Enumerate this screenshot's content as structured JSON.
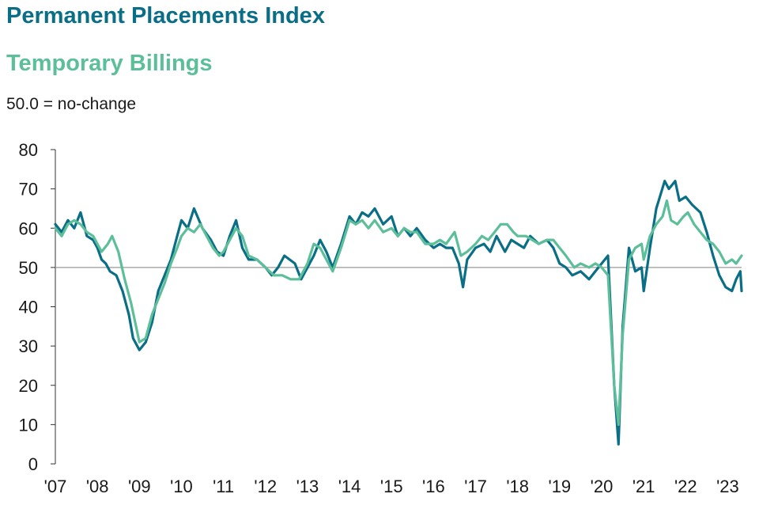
{
  "chart_data": {
    "type": "line",
    "title": "Permanent Placements Index",
    "subtitle": "Temporary Billings",
    "note": "50.0 = no-change",
    "xlabel": "",
    "ylabel": "",
    "ylim": [
      0,
      80
    ],
    "yticks": [
      0,
      10,
      20,
      30,
      40,
      50,
      60,
      70,
      80
    ],
    "reference_line": 50,
    "xticks": [
      "'07",
      "'08",
      "'09",
      "'10",
      "'11",
      "'12",
      "'13",
      "'14",
      "'15",
      "'16",
      "'17",
      "'18",
      "'19",
      "'20",
      "'21",
      "'22",
      "'23"
    ],
    "x_start": 2007.0,
    "x_end": 2023.33,
    "series": [
      {
        "name": "Permanent Placements Index",
        "color": "#0a6e86",
        "points": [
          [
            2007.0,
            61
          ],
          [
            2007.15,
            59
          ],
          [
            2007.3,
            62
          ],
          [
            2007.45,
            60
          ],
          [
            2007.6,
            64
          ],
          [
            2007.75,
            58
          ],
          [
            2007.9,
            57
          ],
          [
            2008.0,
            55
          ],
          [
            2008.1,
            52
          ],
          [
            2008.2,
            51
          ],
          [
            2008.3,
            49
          ],
          [
            2008.45,
            48
          ],
          [
            2008.6,
            44
          ],
          [
            2008.75,
            38
          ],
          [
            2008.85,
            32
          ],
          [
            2009.0,
            29
          ],
          [
            2009.15,
            31
          ],
          [
            2009.3,
            36
          ],
          [
            2009.45,
            44
          ],
          [
            2009.6,
            48
          ],
          [
            2009.75,
            52
          ],
          [
            2009.9,
            58
          ],
          [
            2010.0,
            62
          ],
          [
            2010.15,
            60
          ],
          [
            2010.3,
            65
          ],
          [
            2010.5,
            60
          ],
          [
            2010.7,
            57
          ],
          [
            2010.85,
            54
          ],
          [
            2011.0,
            53
          ],
          [
            2011.15,
            58
          ],
          [
            2011.3,
            62
          ],
          [
            2011.45,
            55
          ],
          [
            2011.6,
            52
          ],
          [
            2011.8,
            52
          ],
          [
            2012.0,
            50
          ],
          [
            2012.15,
            48
          ],
          [
            2012.3,
            50
          ],
          [
            2012.45,
            53
          ],
          [
            2012.7,
            51
          ],
          [
            2012.85,
            47
          ],
          [
            2013.0,
            50
          ],
          [
            2013.15,
            53
          ],
          [
            2013.3,
            57
          ],
          [
            2013.45,
            54
          ],
          [
            2013.6,
            50
          ],
          [
            2013.8,
            56
          ],
          [
            2014.0,
            63
          ],
          [
            2014.15,
            61
          ],
          [
            2014.3,
            64
          ],
          [
            2014.45,
            63
          ],
          [
            2014.6,
            65
          ],
          [
            2014.8,
            61
          ],
          [
            2015.0,
            63
          ],
          [
            2015.15,
            58
          ],
          [
            2015.3,
            60
          ],
          [
            2015.45,
            58
          ],
          [
            2015.6,
            60
          ],
          [
            2015.8,
            57
          ],
          [
            2016.0,
            55
          ],
          [
            2016.15,
            56
          ],
          [
            2016.3,
            55
          ],
          [
            2016.45,
            55
          ],
          [
            2016.6,
            51
          ],
          [
            2016.7,
            45
          ],
          [
            2016.8,
            52
          ],
          [
            2017.0,
            55
          ],
          [
            2017.2,
            56
          ],
          [
            2017.35,
            54
          ],
          [
            2017.5,
            58
          ],
          [
            2017.7,
            54
          ],
          [
            2017.85,
            57
          ],
          [
            2018.0,
            56
          ],
          [
            2018.15,
            55
          ],
          [
            2018.3,
            58
          ],
          [
            2018.5,
            56
          ],
          [
            2018.7,
            57
          ],
          [
            2018.85,
            55
          ],
          [
            2019.0,
            51
          ],
          [
            2019.15,
            50
          ],
          [
            2019.3,
            48
          ],
          [
            2019.5,
            49
          ],
          [
            2019.7,
            47
          ],
          [
            2019.85,
            49
          ],
          [
            2020.0,
            51
          ],
          [
            2020.15,
            53
          ],
          [
            2020.3,
            20
          ],
          [
            2020.4,
            5
          ],
          [
            2020.5,
            35
          ],
          [
            2020.65,
            55
          ],
          [
            2020.8,
            49
          ],
          [
            2020.95,
            50
          ],
          [
            2021.0,
            44
          ],
          [
            2021.15,
            55
          ],
          [
            2021.3,
            65
          ],
          [
            2021.5,
            72
          ],
          [
            2021.6,
            70
          ],
          [
            2021.75,
            72
          ],
          [
            2021.85,
            67
          ],
          [
            2022.0,
            68
          ],
          [
            2022.15,
            66
          ],
          [
            2022.35,
            64
          ],
          [
            2022.5,
            59
          ],
          [
            2022.65,
            53
          ],
          [
            2022.8,
            48
          ],
          [
            2022.95,
            45
          ],
          [
            2023.1,
            44
          ],
          [
            2023.2,
            47
          ],
          [
            2023.3,
            49
          ],
          [
            2023.33,
            44
          ]
        ]
      },
      {
        "name": "Temporary Billings",
        "color": "#5cbf9a",
        "points": [
          [
            2007.0,
            60
          ],
          [
            2007.15,
            58
          ],
          [
            2007.3,
            61
          ],
          [
            2007.45,
            62
          ],
          [
            2007.6,
            61
          ],
          [
            2007.75,
            59
          ],
          [
            2007.9,
            58
          ],
          [
            2008.0,
            56
          ],
          [
            2008.1,
            54
          ],
          [
            2008.25,
            56
          ],
          [
            2008.35,
            58
          ],
          [
            2008.5,
            54
          ],
          [
            2008.65,
            47
          ],
          [
            2008.8,
            41
          ],
          [
            2009.0,
            31
          ],
          [
            2009.15,
            32
          ],
          [
            2009.3,
            38
          ],
          [
            2009.45,
            42
          ],
          [
            2009.6,
            46
          ],
          [
            2009.75,
            51
          ],
          [
            2009.9,
            55
          ],
          [
            2010.0,
            58
          ],
          [
            2010.15,
            60
          ],
          [
            2010.3,
            59
          ],
          [
            2010.45,
            61
          ],
          [
            2010.6,
            58
          ],
          [
            2010.75,
            55
          ],
          [
            2010.9,
            53
          ],
          [
            2011.0,
            54
          ],
          [
            2011.15,
            57
          ],
          [
            2011.3,
            60
          ],
          [
            2011.45,
            58
          ],
          [
            2011.6,
            53
          ],
          [
            2011.8,
            52
          ],
          [
            2012.0,
            50
          ],
          [
            2012.2,
            48
          ],
          [
            2012.4,
            48
          ],
          [
            2012.6,
            47
          ],
          [
            2012.8,
            47
          ],
          [
            2013.0,
            51
          ],
          [
            2013.15,
            56
          ],
          [
            2013.3,
            55
          ],
          [
            2013.45,
            52
          ],
          [
            2013.6,
            49
          ],
          [
            2013.8,
            55
          ],
          [
            2014.0,
            62
          ],
          [
            2014.15,
            61
          ],
          [
            2014.3,
            62
          ],
          [
            2014.45,
            60
          ],
          [
            2014.6,
            62
          ],
          [
            2014.8,
            59
          ],
          [
            2015.0,
            60
          ],
          [
            2015.15,
            58
          ],
          [
            2015.3,
            60
          ],
          [
            2015.45,
            59
          ],
          [
            2015.6,
            59
          ],
          [
            2015.8,
            56
          ],
          [
            2016.0,
            56
          ],
          [
            2016.15,
            57
          ],
          [
            2016.3,
            56
          ],
          [
            2016.5,
            59
          ],
          [
            2016.65,
            53
          ],
          [
            2016.8,
            54
          ],
          [
            2017.0,
            56
          ],
          [
            2017.15,
            58
          ],
          [
            2017.3,
            57
          ],
          [
            2017.45,
            59
          ],
          [
            2017.6,
            61
          ],
          [
            2017.75,
            61
          ],
          [
            2017.9,
            59
          ],
          [
            2018.0,
            58
          ],
          [
            2018.2,
            58
          ],
          [
            2018.35,
            57
          ],
          [
            2018.5,
            56
          ],
          [
            2018.7,
            57
          ],
          [
            2018.85,
            57
          ],
          [
            2019.0,
            55
          ],
          [
            2019.15,
            53
          ],
          [
            2019.35,
            50
          ],
          [
            2019.5,
            51
          ],
          [
            2019.7,
            50
          ],
          [
            2019.85,
            51
          ],
          [
            2020.0,
            50
          ],
          [
            2020.15,
            48
          ],
          [
            2020.3,
            20
          ],
          [
            2020.4,
            10
          ],
          [
            2020.5,
            33
          ],
          [
            2020.65,
            52
          ],
          [
            2020.8,
            55
          ],
          [
            2020.95,
            56
          ],
          [
            2021.0,
            52
          ],
          [
            2021.15,
            58
          ],
          [
            2021.3,
            61
          ],
          [
            2021.45,
            63
          ],
          [
            2021.55,
            67
          ],
          [
            2021.65,
            62
          ],
          [
            2021.8,
            61
          ],
          [
            2021.95,
            63
          ],
          [
            2022.05,
            64
          ],
          [
            2022.2,
            61
          ],
          [
            2022.35,
            59
          ],
          [
            2022.5,
            57
          ],
          [
            2022.65,
            56
          ],
          [
            2022.8,
            54
          ],
          [
            2022.95,
            51
          ],
          [
            2023.1,
            52
          ],
          [
            2023.2,
            51
          ],
          [
            2023.33,
            53
          ]
        ]
      }
    ]
  }
}
